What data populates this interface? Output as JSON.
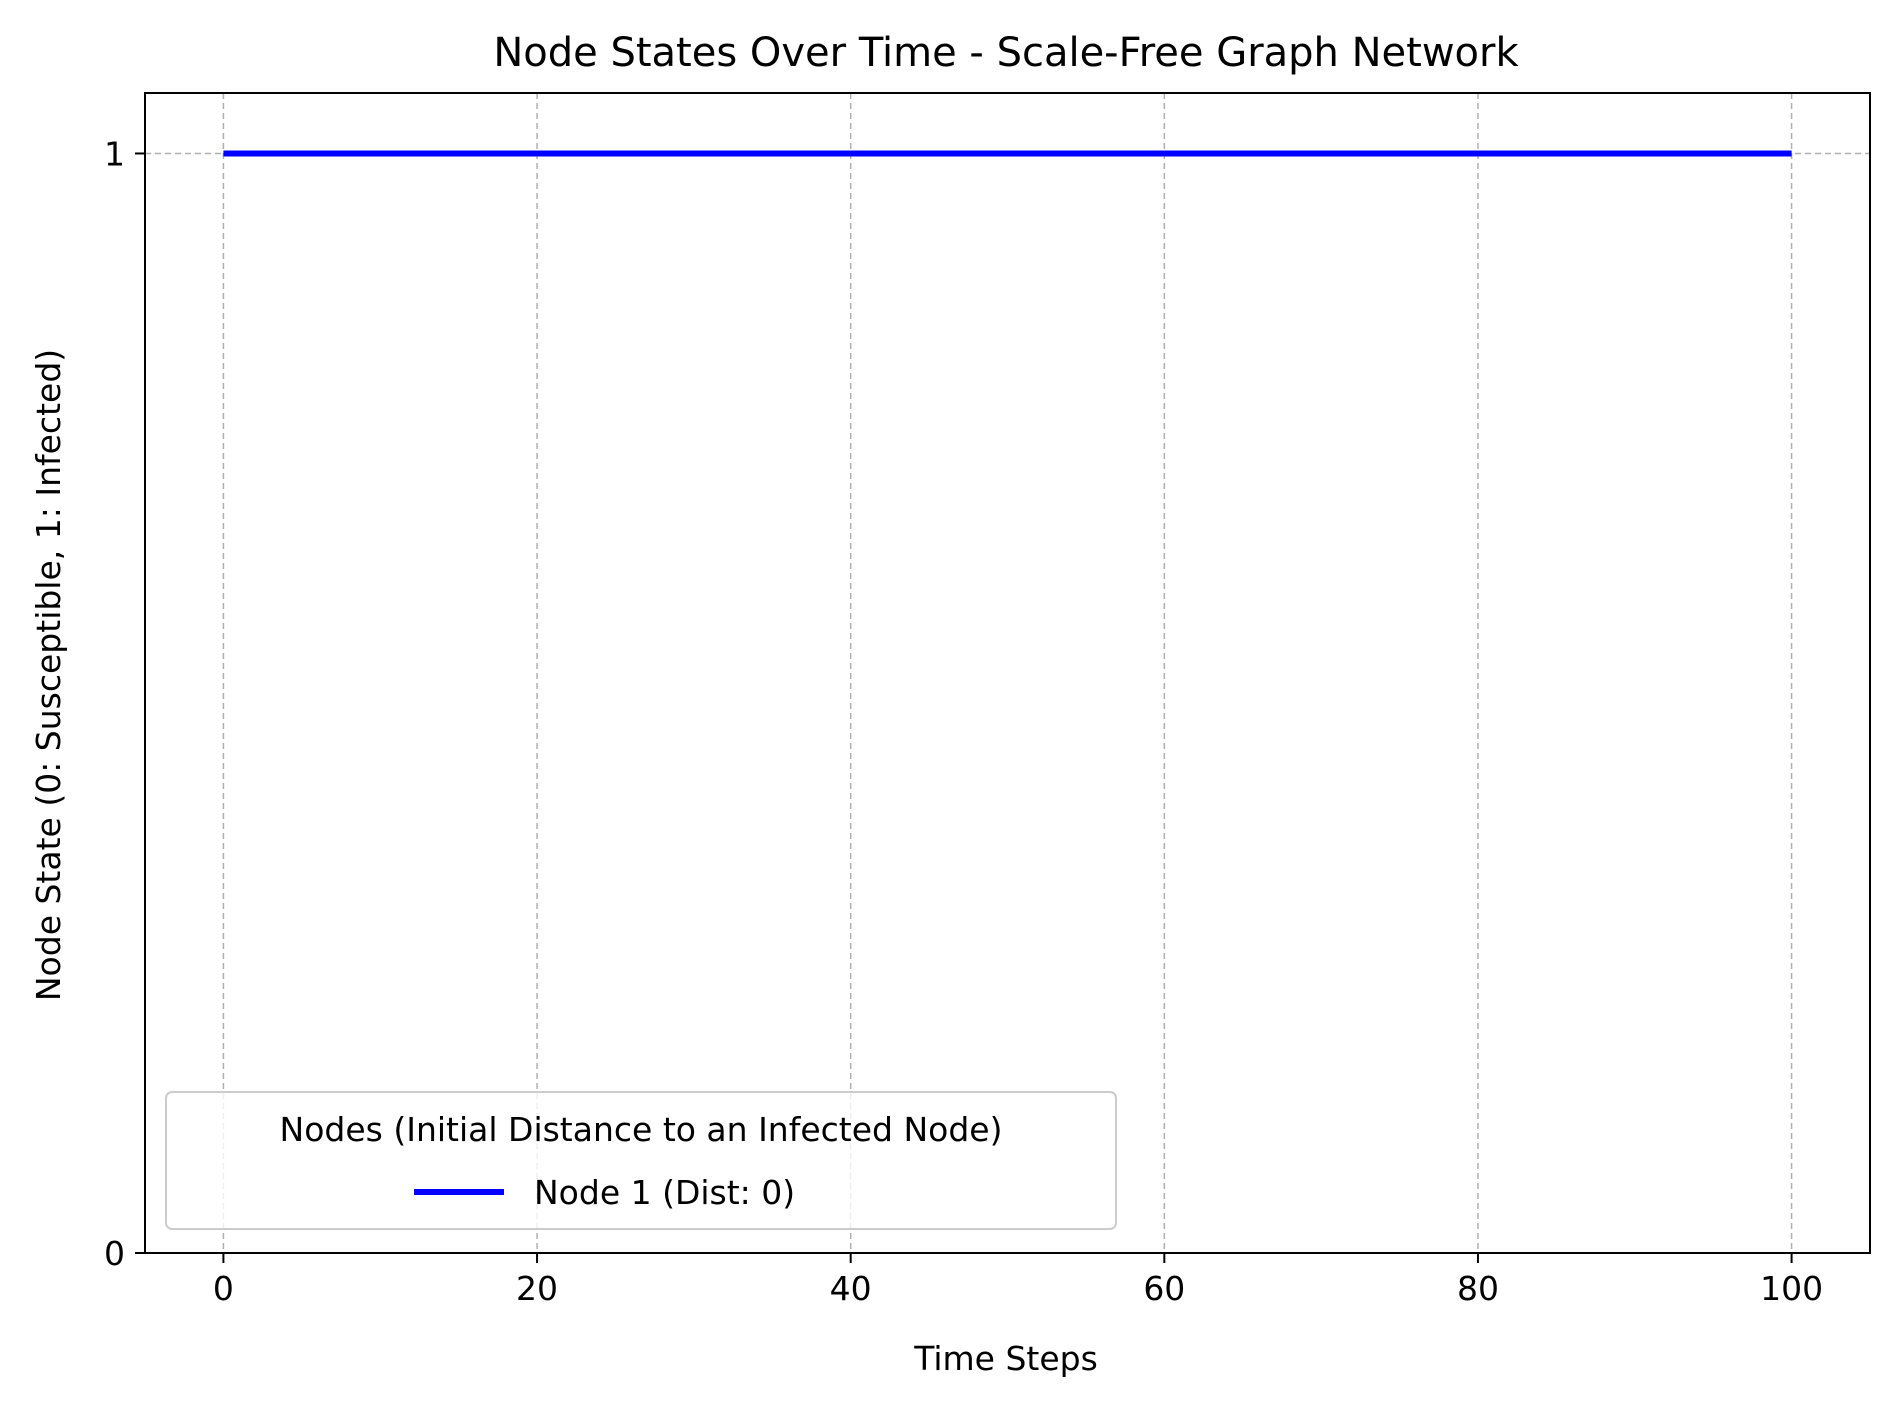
{
  "chart_data": {
    "type": "line",
    "title": "Node States Over Time - Scale-Free Graph Network",
    "xlabel": "Time Steps",
    "ylabel": "Node State (0: Susceptible, 1: Infected)",
    "xlim": [
      -5,
      105
    ],
    "ylim": [
      0,
      1.055
    ],
    "xticks": [
      0,
      20,
      40,
      60,
      80,
      100
    ],
    "xtick_labels": [
      "0",
      "20",
      "40",
      "60",
      "80",
      "100"
    ],
    "yticks": [
      0,
      1
    ],
    "ytick_labels": [
      "0",
      "1"
    ],
    "grid": true,
    "grid_style": "dashed",
    "legend": {
      "title": "Nodes (Initial Distance to an Infected Node)",
      "placement": "lower-left"
    },
    "series": [
      {
        "name": "Node 1 (Dist: 0)",
        "color": "#0000ff",
        "x": [
          0,
          100
        ],
        "y": [
          1,
          1
        ]
      }
    ]
  }
}
